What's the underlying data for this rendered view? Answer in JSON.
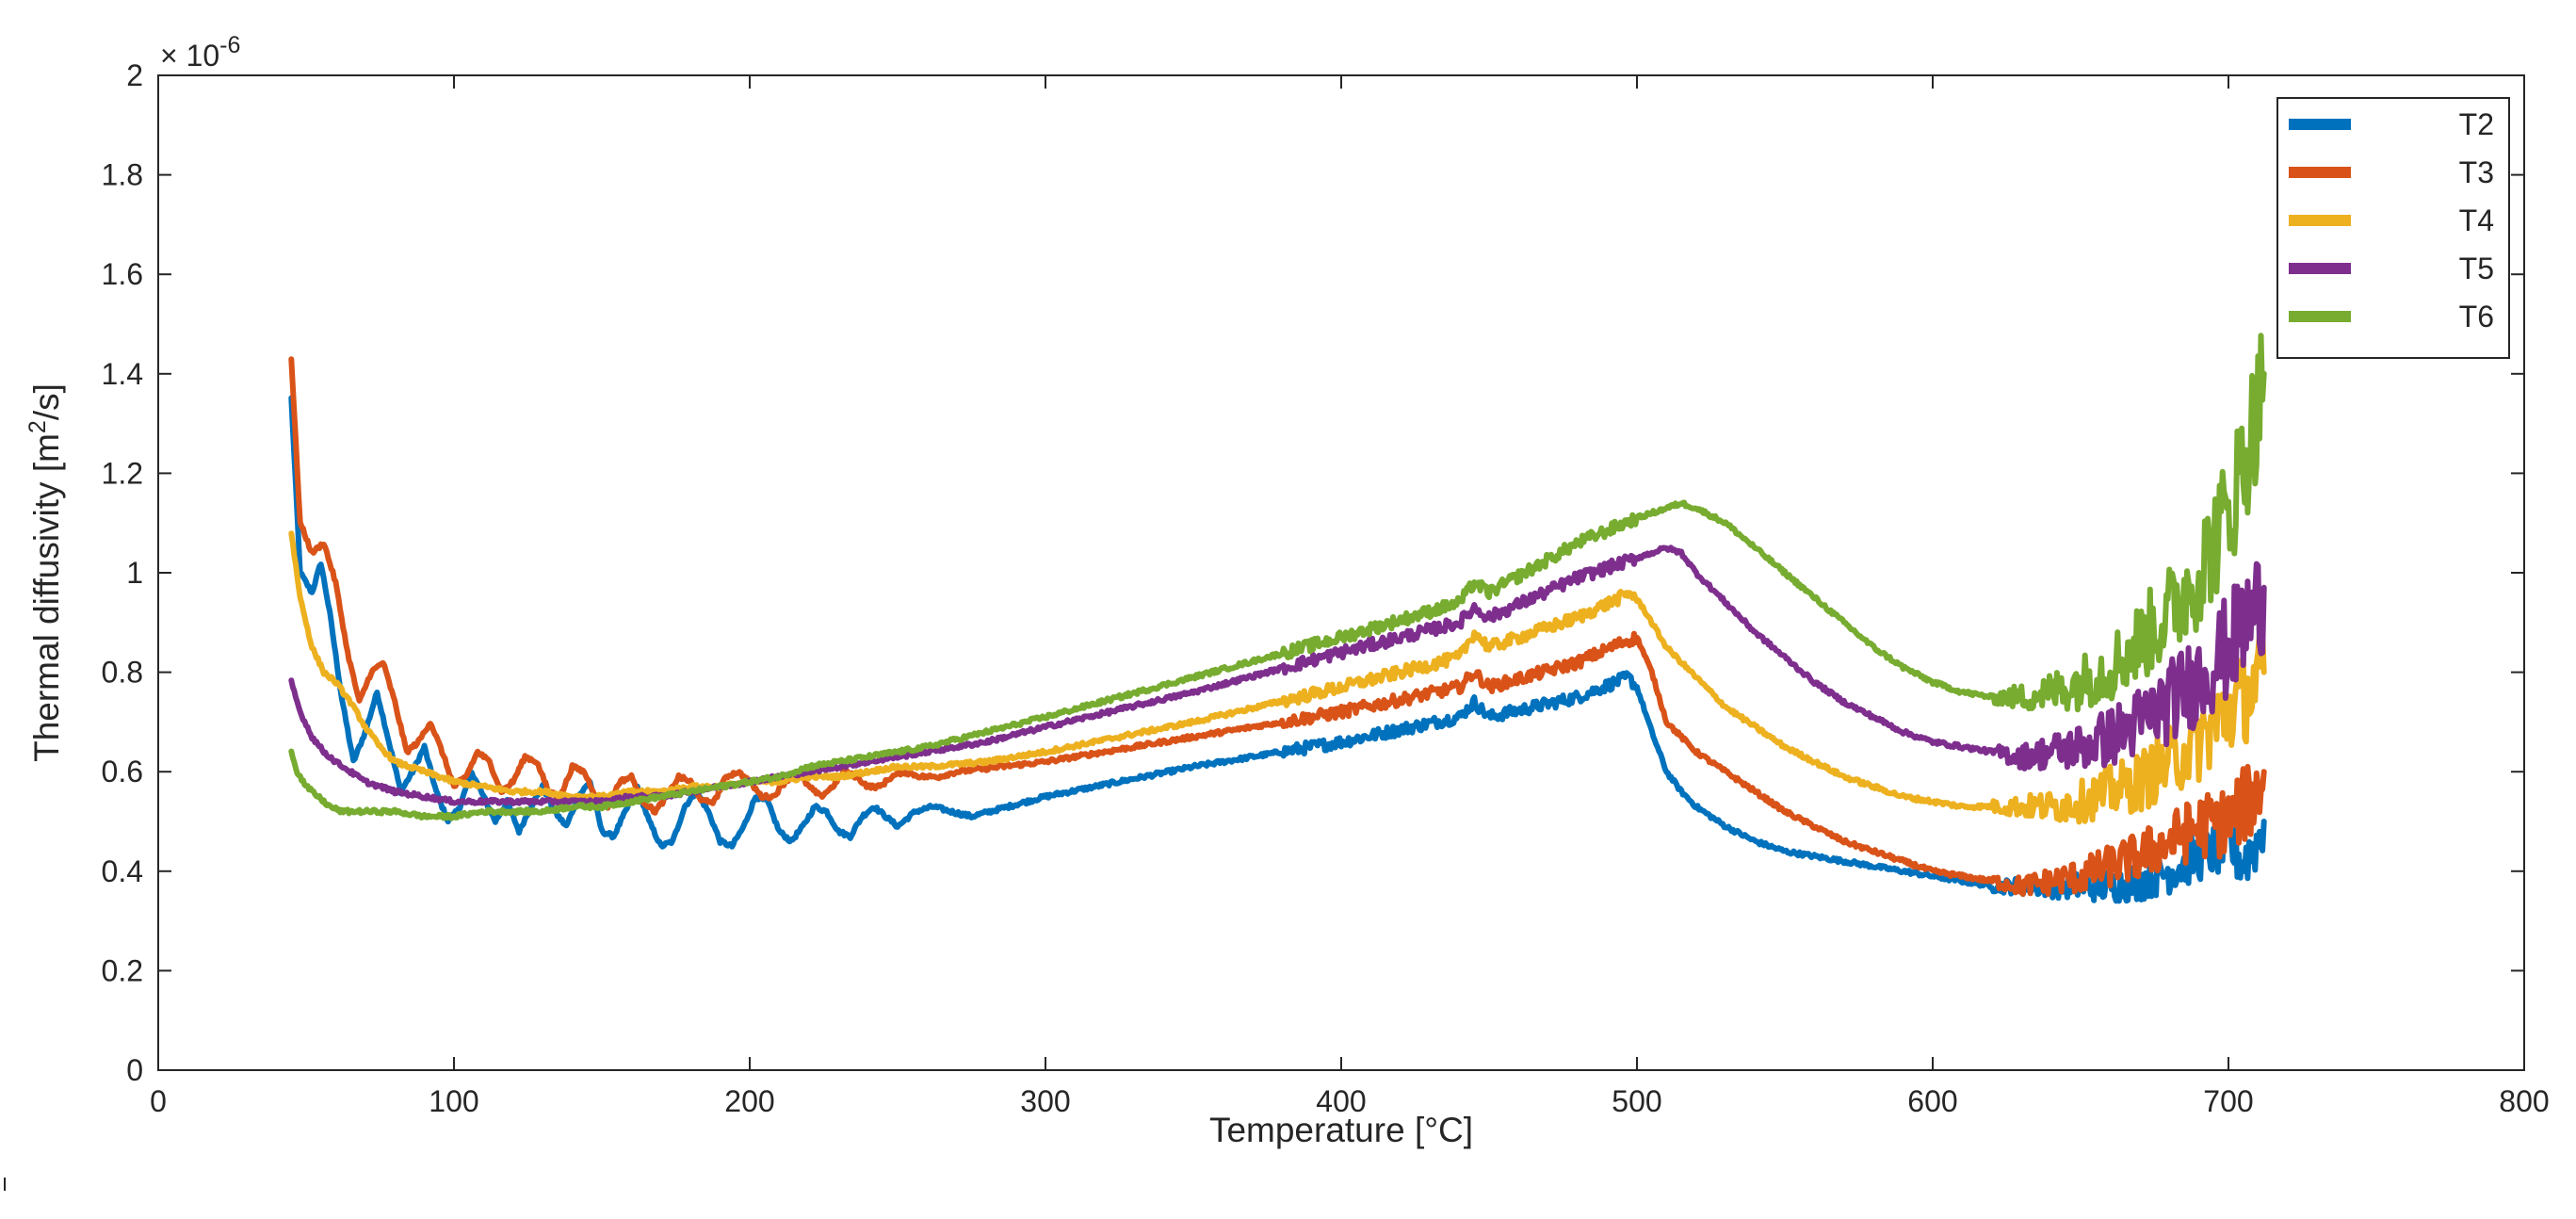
{
  "chart_data": {
    "type": "line",
    "title": "",
    "xlabel": "Temperature [°C]",
    "ylabel_main": "Thermal diffusivity [m",
    "ylabel_sup": "2",
    "ylabel_end": "/s]",
    "exponent_base": "× 10",
    "exponent_power": "-6",
    "xlim": [
      0,
      800
    ],
    "ylim": [
      0,
      2
    ],
    "xticks": [
      0,
      100,
      200,
      300,
      400,
      500,
      600,
      700,
      800
    ],
    "xtick_labels": [
      "0",
      "100",
      "200",
      "300",
      "400",
      "500",
      "600",
      "700",
      "800"
    ],
    "yticks": [
      0,
      0.2,
      0.4,
      0.6,
      0.8,
      1,
      1.2,
      1.4,
      1.6,
      1.8,
      2
    ],
    "ytick_labels": [
      "0",
      "0.2",
      "0.4",
      "0.6",
      "0.8",
      "1",
      "1.2",
      "1.4",
      "1.6",
      "1.8",
      "2"
    ],
    "grid": false,
    "legend_position": "top-right",
    "series": [
      {
        "name": "T2",
        "color": "#0072BD",
        "x": [
          45,
          48,
          52,
          55,
          58,
          62,
          66,
          70,
          74,
          78,
          82,
          86,
          90,
          94,
          98,
          102,
          106,
          110,
          114,
          118,
          122,
          126,
          130,
          134,
          138,
          142,
          146,
          150,
          154,
          158,
          162,
          166,
          170,
          174,
          178,
          182,
          186,
          190,
          194,
          198,
          202,
          206,
          210,
          214,
          218,
          222,
          226,
          230,
          234,
          238,
          242,
          246,
          250,
          256,
          262,
          268,
          275,
          300,
          350,
          400,
          440,
          445,
          450,
          480,
          497,
          500,
          505,
          510,
          515,
          520,
          530,
          540,
          550,
          560,
          570,
          580,
          590,
          600,
          610,
          620,
          630,
          640,
          650,
          660,
          670,
          680,
          690,
          700,
          705,
          710,
          712
        ],
        "y": [
          1.35,
          1.0,
          0.96,
          1.02,
          0.92,
          0.75,
          0.62,
          0.68,
          0.76,
          0.66,
          0.56,
          0.6,
          0.65,
          0.56,
          0.5,
          0.53,
          0.6,
          0.55,
          0.5,
          0.54,
          0.48,
          0.53,
          0.57,
          0.52,
          0.49,
          0.55,
          0.58,
          0.48,
          0.47,
          0.52,
          0.57,
          0.5,
          0.45,
          0.46,
          0.53,
          0.56,
          0.52,
          0.46,
          0.45,
          0.49,
          0.55,
          0.54,
          0.48,
          0.46,
          0.49,
          0.53,
          0.52,
          0.48,
          0.47,
          0.51,
          0.53,
          0.51,
          0.49,
          0.52,
          0.53,
          0.52,
          0.51,
          0.55,
          0.61,
          0.66,
          0.71,
          0.74,
          0.71,
          0.75,
          0.79,
          0.77,
          0.68,
          0.6,
          0.56,
          0.53,
          0.49,
          0.46,
          0.44,
          0.43,
          0.42,
          0.41,
          0.4,
          0.39,
          0.38,
          0.37,
          0.37,
          0.37,
          0.37,
          0.37,
          0.38,
          0.4,
          0.43,
          0.45,
          0.42,
          0.46,
          0.5
        ]
      },
      {
        "name": "T3",
        "color": "#D95319",
        "x": [
          45,
          48,
          52,
          56,
          60,
          64,
          68,
          72,
          76,
          80,
          84,
          88,
          92,
          96,
          100,
          104,
          108,
          112,
          116,
          120,
          124,
          128,
          132,
          136,
          140,
          144,
          148,
          152,
          156,
          160,
          164,
          168,
          172,
          176,
          180,
          184,
          188,
          192,
          196,
          200,
          204,
          208,
          212,
          216,
          220,
          224,
          228,
          232,
          236,
          240,
          244,
          248,
          252,
          258,
          264,
          270,
          300,
          350,
          400,
          440,
          445,
          450,
          480,
          495,
          500,
          505,
          510,
          520,
          530,
          540,
          550,
          560,
          570,
          580,
          590,
          600,
          610,
          620,
          630,
          640,
          650,
          660,
          670,
          680,
          690,
          700,
          705,
          710,
          712
        ],
        "y": [
          1.43,
          1.1,
          1.04,
          1.06,
          0.98,
          0.84,
          0.74,
          0.8,
          0.82,
          0.74,
          0.64,
          0.66,
          0.7,
          0.64,
          0.57,
          0.59,
          0.64,
          0.62,
          0.56,
          0.58,
          0.63,
          0.62,
          0.56,
          0.55,
          0.61,
          0.6,
          0.55,
          0.53,
          0.58,
          0.59,
          0.54,
          0.52,
          0.55,
          0.59,
          0.58,
          0.54,
          0.54,
          0.59,
          0.6,
          0.58,
          0.55,
          0.55,
          0.58,
          0.6,
          0.57,
          0.55,
          0.57,
          0.6,
          0.59,
          0.57,
          0.57,
          0.59,
          0.6,
          0.59,
          0.59,
          0.6,
          0.62,
          0.67,
          0.72,
          0.77,
          0.8,
          0.77,
          0.82,
          0.86,
          0.87,
          0.8,
          0.7,
          0.64,
          0.6,
          0.56,
          0.52,
          0.49,
          0.46,
          0.44,
          0.42,
          0.4,
          0.39,
          0.38,
          0.37,
          0.38,
          0.39,
          0.41,
          0.43,
          0.46,
          0.49,
          0.5,
          0.53,
          0.56,
          0.6
        ]
      },
      {
        "name": "T4",
        "color": "#EDB120",
        "x": [
          45,
          48,
          52,
          56,
          60,
          65,
          70,
          75,
          80,
          90,
          100,
          110,
          120,
          130,
          140,
          150,
          160,
          170,
          180,
          190,
          200,
          210,
          220,
          230,
          240,
          250,
          260,
          280,
          300,
          350,
          400,
          440,
          445,
          450,
          480,
          498,
          502,
          510,
          520,
          530,
          540,
          550,
          560,
          570,
          580,
          590,
          600,
          610,
          620,
          630,
          640,
          650,
          660,
          670,
          680,
          690,
          700,
          705,
          710,
          712
        ],
        "y": [
          1.08,
          0.95,
          0.85,
          0.8,
          0.78,
          0.74,
          0.69,
          0.65,
          0.62,
          0.6,
          0.58,
          0.57,
          0.56,
          0.56,
          0.55,
          0.55,
          0.56,
          0.56,
          0.57,
          0.57,
          0.58,
          0.58,
          0.59,
          0.59,
          0.6,
          0.61,
          0.61,
          0.62,
          0.64,
          0.7,
          0.77,
          0.83,
          0.88,
          0.85,
          0.91,
          0.96,
          0.93,
          0.85,
          0.79,
          0.73,
          0.69,
          0.65,
          0.62,
          0.59,
          0.57,
          0.55,
          0.54,
          0.53,
          0.53,
          0.53,
          0.53,
          0.54,
          0.56,
          0.58,
          0.62,
          0.66,
          0.72,
          0.75,
          0.78,
          0.8
        ]
      },
      {
        "name": "T5",
        "color": "#7E2F8E",
        "x": [
          45,
          48,
          52,
          56,
          60,
          65,
          70,
          80,
          90,
          100,
          110,
          120,
          130,
          140,
          150,
          160,
          170,
          180,
          190,
          200,
          210,
          220,
          230,
          240,
          250,
          260,
          280,
          300,
          350,
          400,
          440,
          445,
          450,
          480,
          500,
          510,
          515,
          520,
          530,
          540,
          550,
          560,
          570,
          580,
          590,
          600,
          610,
          620,
          630,
          640,
          650,
          660,
          670,
          680,
          690,
          700,
          705,
          710,
          712
        ],
        "y": [
          0.78,
          0.72,
          0.67,
          0.64,
          0.62,
          0.6,
          0.58,
          0.56,
          0.55,
          0.54,
          0.54,
          0.54,
          0.54,
          0.54,
          0.54,
          0.55,
          0.55,
          0.56,
          0.57,
          0.58,
          0.59,
          0.6,
          0.61,
          0.62,
          0.63,
          0.64,
          0.66,
          0.69,
          0.76,
          0.84,
          0.9,
          0.93,
          0.91,
          0.99,
          1.03,
          1.05,
          1.04,
          1.0,
          0.94,
          0.88,
          0.83,
          0.78,
          0.74,
          0.71,
          0.68,
          0.66,
          0.65,
          0.64,
          0.63,
          0.64,
          0.65,
          0.67,
          0.7,
          0.74,
          0.79,
          0.85,
          0.89,
          0.93,
          0.97
        ]
      },
      {
        "name": "T6",
        "color": "#77AC30",
        "x": [
          45,
          47,
          50,
          54,
          58,
          62,
          66,
          70,
          80,
          90,
          100,
          110,
          120,
          130,
          140,
          150,
          160,
          170,
          180,
          190,
          200,
          210,
          220,
          230,
          240,
          250,
          260,
          280,
          300,
          350,
          400,
          440,
          445,
          450,
          480,
          500,
          510,
          515,
          520,
          530,
          540,
          550,
          560,
          570,
          580,
          590,
          600,
          610,
          620,
          630,
          640,
          650,
          660,
          670,
          680,
          690,
          700,
          705,
          710,
          712
        ],
        "y": [
          0.64,
          0.6,
          0.57,
          0.55,
          0.53,
          0.52,
          0.52,
          0.52,
          0.52,
          0.51,
          0.51,
          0.52,
          0.52,
          0.52,
          0.53,
          0.53,
          0.54,
          0.55,
          0.56,
          0.57,
          0.58,
          0.59,
          0.61,
          0.62,
          0.63,
          0.64,
          0.65,
          0.68,
          0.71,
          0.79,
          0.87,
          0.94,
          0.98,
          0.96,
          1.06,
          1.11,
          1.13,
          1.14,
          1.13,
          1.1,
          1.05,
          1.0,
          0.95,
          0.9,
          0.85,
          0.81,
          0.78,
          0.76,
          0.75,
          0.75,
          0.76,
          0.78,
          0.81,
          0.86,
          0.92,
          1.0,
          1.12,
          1.22,
          1.33,
          1.4
        ]
      }
    ]
  }
}
